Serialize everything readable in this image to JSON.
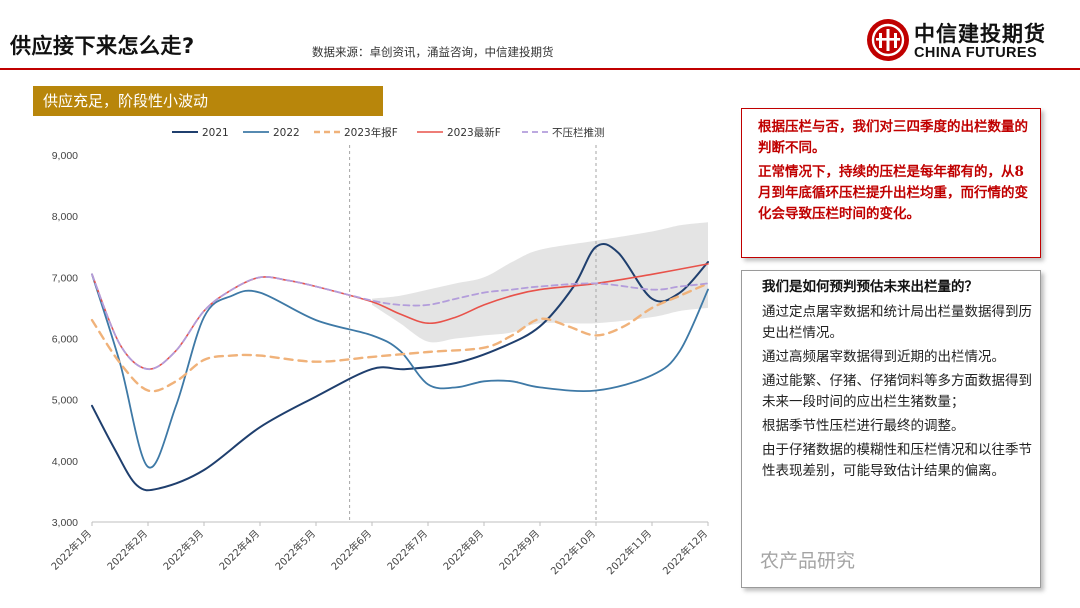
{
  "header": {
    "title": "供应接下来怎么走?",
    "source": "数据来源：卓创资讯，涌益咨询，中信建投期货"
  },
  "logo": {
    "name_cn": "中信建投期货",
    "name_en": "CHINA FUTURES",
    "brand_color": "#c00000"
  },
  "section": {
    "banner": "供应充足，阶段性小波动",
    "banner_color": "#b8860b"
  },
  "chart_data": {
    "type": "line",
    "title": "",
    "xlabel": "",
    "ylabel": "",
    "ylim": [
      3000,
      9000
    ],
    "yticks": [
      "9,000",
      "8,000",
      "7,000",
      "6,000",
      "5,000",
      "4,000",
      "3,000"
    ],
    "ytick_values": [
      9000,
      8000,
      7000,
      6000,
      5000,
      4000,
      3000
    ],
    "categories": [
      "2022年1月",
      "2022年2月",
      "2022年3月",
      "2022年4月",
      "2022年5月",
      "2022年6月",
      "2022年7月",
      "2022年8月",
      "2022年9月",
      "2022年10月",
      "2022年11月",
      "2022年12月"
    ],
    "legend_position": "top",
    "vertical_markers": [
      5.6,
      10
    ],
    "series": [
      {
        "name": "2021",
        "color": "#1f3f6e",
        "style": "solid",
        "width": 2,
        "x": [
          1,
          1.4,
          1.8,
          2.2,
          3,
          4,
          5,
          6,
          6.6,
          7.5,
          8.3,
          9,
          9.6,
          10,
          10.4,
          11,
          11.5,
          12
        ],
        "values": [
          4900,
          4200,
          3600,
          3550,
          3850,
          4550,
          5050,
          5500,
          5500,
          5600,
          5850,
          6200,
          6850,
          7500,
          7400,
          6650,
          6750,
          7250
        ]
      },
      {
        "name": "2022",
        "color": "#3e79a6",
        "style": "solid",
        "width": 1.8,
        "x": [
          1,
          1.5,
          2,
          2.5,
          3,
          3.5,
          4,
          5,
          6,
          6.5,
          7,
          7.5,
          8,
          8.5,
          9,
          10,
          11,
          11.5,
          12
        ],
        "values": [
          7050,
          5600,
          3900,
          4900,
          6350,
          6700,
          6750,
          6300,
          6050,
          5800,
          5250,
          5200,
          5300,
          5300,
          5200,
          5150,
          5400,
          5800,
          6800
        ]
      },
      {
        "name": "2023年报F",
        "color": "#f0b27a",
        "style": "dashed",
        "width": 2.4,
        "x": [
          1,
          1.5,
          2,
          2.5,
          3,
          3.5,
          4,
          5,
          6,
          7,
          8,
          8.5,
          9,
          9.5,
          10,
          10.5,
          11,
          11.5,
          12
        ],
        "values": [
          6300,
          5600,
          5150,
          5300,
          5650,
          5720,
          5720,
          5620,
          5700,
          5780,
          5850,
          6050,
          6320,
          6200,
          6050,
          6200,
          6500,
          6700,
          6900
        ]
      },
      {
        "name": "2023最新F",
        "color": "#e8524a",
        "style": "solid",
        "width": 1.6,
        "x": [
          1,
          1.5,
          2,
          2.5,
          3,
          3.5,
          4,
          4.5,
          5,
          6,
          6.5,
          7,
          7.5,
          8,
          8.5,
          9,
          10,
          11,
          12
        ],
        "values": [
          7050,
          5900,
          5500,
          5800,
          6450,
          6800,
          7000,
          6950,
          6850,
          6600,
          6400,
          6250,
          6350,
          6550,
          6700,
          6800,
          6900,
          7050,
          7220
        ]
      },
      {
        "name": "不压栏推测",
        "color": "#b39ddb",
        "style": "dashed",
        "width": 1.8,
        "x": [
          1,
          1.5,
          2,
          2.5,
          3,
          3.5,
          4,
          4.5,
          5,
          6,
          6.5,
          7,
          7.5,
          8,
          8.5,
          9,
          10,
          11,
          11.5,
          12
        ],
        "values": [
          7050,
          5900,
          5500,
          5800,
          6450,
          6800,
          7000,
          6950,
          6850,
          6620,
          6550,
          6550,
          6650,
          6750,
          6800,
          6850,
          6900,
          6800,
          6850,
          6900
        ]
      }
    ],
    "band": {
      "color": "#d9d9d9",
      "x": [
        6,
        6.5,
        7,
        7.5,
        8,
        8.5,
        9,
        10,
        11,
        11.5,
        12
      ],
      "upper": [
        6650,
        6700,
        6800,
        6900,
        7000,
        7250,
        7450,
        7600,
        7750,
        7850,
        7900
      ],
      "lower": [
        6550,
        6250,
        5950,
        6000,
        6050,
        6100,
        6250,
        6250,
        6350,
        6450,
        6500
      ]
    }
  },
  "notes_red": {
    "p1": "根据压栏与否，我们对三四季度的出栏数量的判断不同。",
    "p2": "正常情况下，持续的压栏是每年都有的，从8月到年底循环压栏提升出栏均重，而行情的变化会导致压栏时间的变化。",
    "color": "#c00000"
  },
  "notes_grey": {
    "question": "我们是如何预判预估未来出栏量的？",
    "a1": "通过定点屠宰数据和统计局出栏量数据得到历史出栏情况。",
    "a2": "通过高频屠宰数据得到近期的出栏情况。",
    "a3": "通过能繁、仔猪、仔猪饲料等多方面数据得到未来一段时间的应出栏生猪数量；",
    "a4": "根据季节性压栏进行最终的调整。",
    "a5": "由于仔猪数据的模糊性和压栏情况和以往季节性表现差别，可能导致估计结果的偏离。"
  },
  "watermark": "农产品研究"
}
